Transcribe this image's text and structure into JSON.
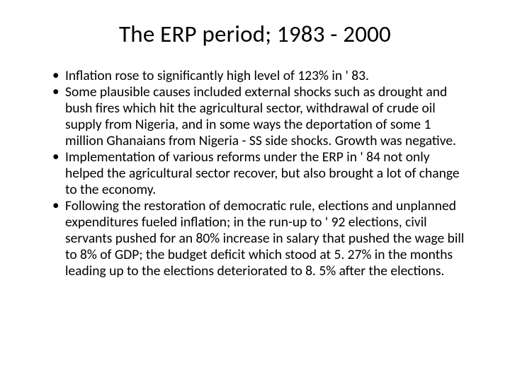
{
  "slide": {
    "title": "The ERP period; 1983 - 2000",
    "bullets": [
      "Inflation rose to significantly high level of 123% in ' 83.",
      "Some plausible causes included external shocks such as drought and bush fires which hit the agricultural sector, withdrawal of crude oil supply from Nigeria, and in some ways the deportation of some 1 million Ghanaians from Nigeria - SS side shocks. Growth was negative.",
      "Implementation of various reforms under the ERP in ' 84 not only helped the agricultural sector recover, but also brought a lot of change to the economy.",
      "Following the restoration of democratic rule, elections and unplanned expenditures fueled inflation; in the run-up to ' 92 elections, civil servants pushed for an 80% increase in salary that pushed the wage bill to 8% of GDP; the budget deficit which stood at 5. 27% in the months leading up to the elections deteriorated to 8. 5% after the elections."
    ]
  },
  "styling": {
    "background_color": "#ffffff",
    "text_color": "#000000",
    "title_fontsize": 33,
    "body_fontsize": 19.5,
    "font_family": "Calibri"
  }
}
